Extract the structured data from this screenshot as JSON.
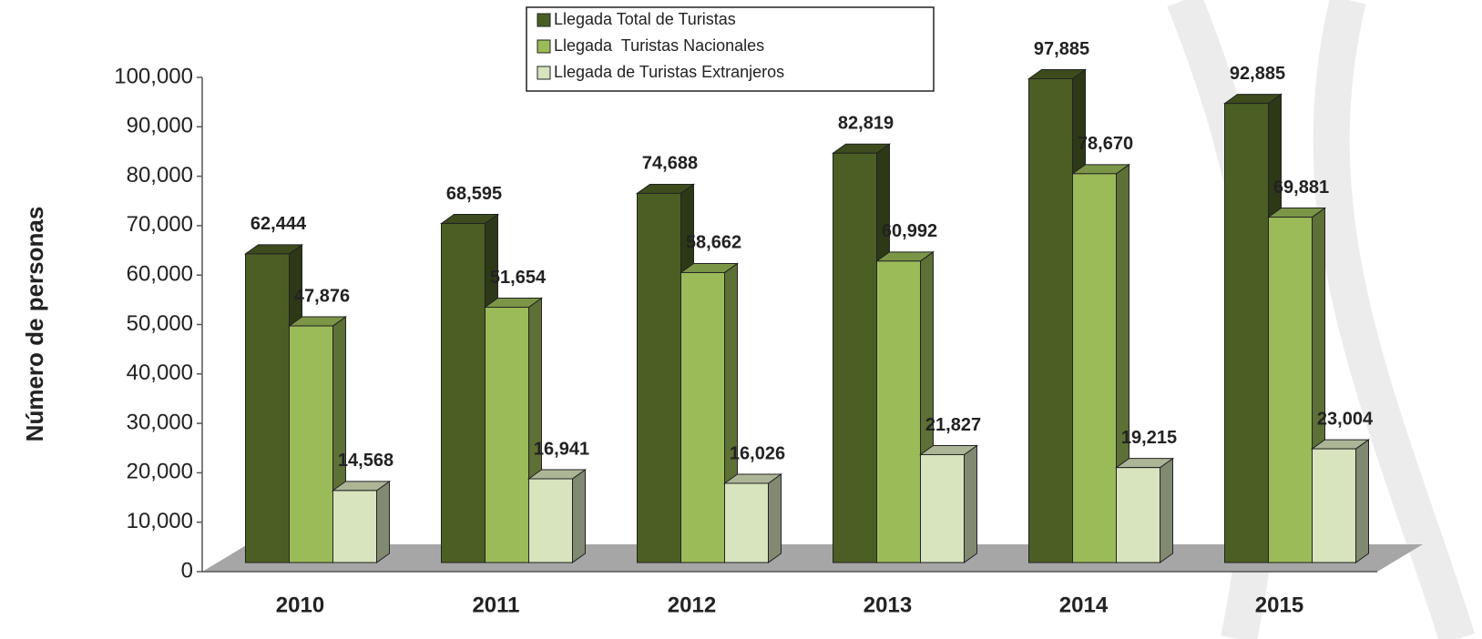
{
  "chart_data": {
    "type": "bar3d",
    "y_label": "Número de personas",
    "categories": [
      "2010",
      "2011",
      "2012",
      "2013",
      "2014",
      "2015"
    ],
    "series": [
      {
        "name": "Llegada Total de Turistas",
        "color": "#4b5f24",
        "values": [
          62444,
          68595,
          74688,
          82819,
          97885,
          92885
        ],
        "value_labels": [
          "62,444",
          "68,595",
          "74,688",
          "82,819",
          "97,885",
          "92,885"
        ]
      },
      {
        "name": "Llegada  Turistas Nacionales",
        "color": "#9bbb59",
        "values": [
          47876,
          51654,
          58662,
          60992,
          78670,
          69881
        ],
        "value_labels": [
          "47,876",
          "51,654",
          "58,662",
          "60,992",
          "78,670",
          "69,881"
        ]
      },
      {
        "name": "Llegada de Turistas Extranjeros",
        "color": "#d7e4bd",
        "values": [
          14568,
          16941,
          16026,
          21827,
          19215,
          23004
        ],
        "value_labels": [
          "14,568",
          "16,941",
          "16,026",
          "21,827",
          "19,215",
          "23,004"
        ]
      }
    ],
    "ylim": [
      0,
      100000
    ],
    "yticks": [
      0,
      {
        "value": 10000,
        "label": "10,000"
      },
      {
        "value": 20000,
        "label": "20,000"
      },
      {
        "value": 30000,
        "label": "30,000"
      },
      {
        "value": 40000,
        "label": "40,000"
      },
      {
        "value": 50000,
        "label": "50,000"
      },
      {
        "value": 60000,
        "label": "60,000"
      },
      {
        "value": 70000,
        "label": "70,000"
      },
      {
        "value": 80000,
        "label": "80,000"
      },
      {
        "value": 90000,
        "label": "90,000"
      },
      {
        "value": 100000,
        "label": "100,000"
      }
    ],
    "legend": "top"
  }
}
